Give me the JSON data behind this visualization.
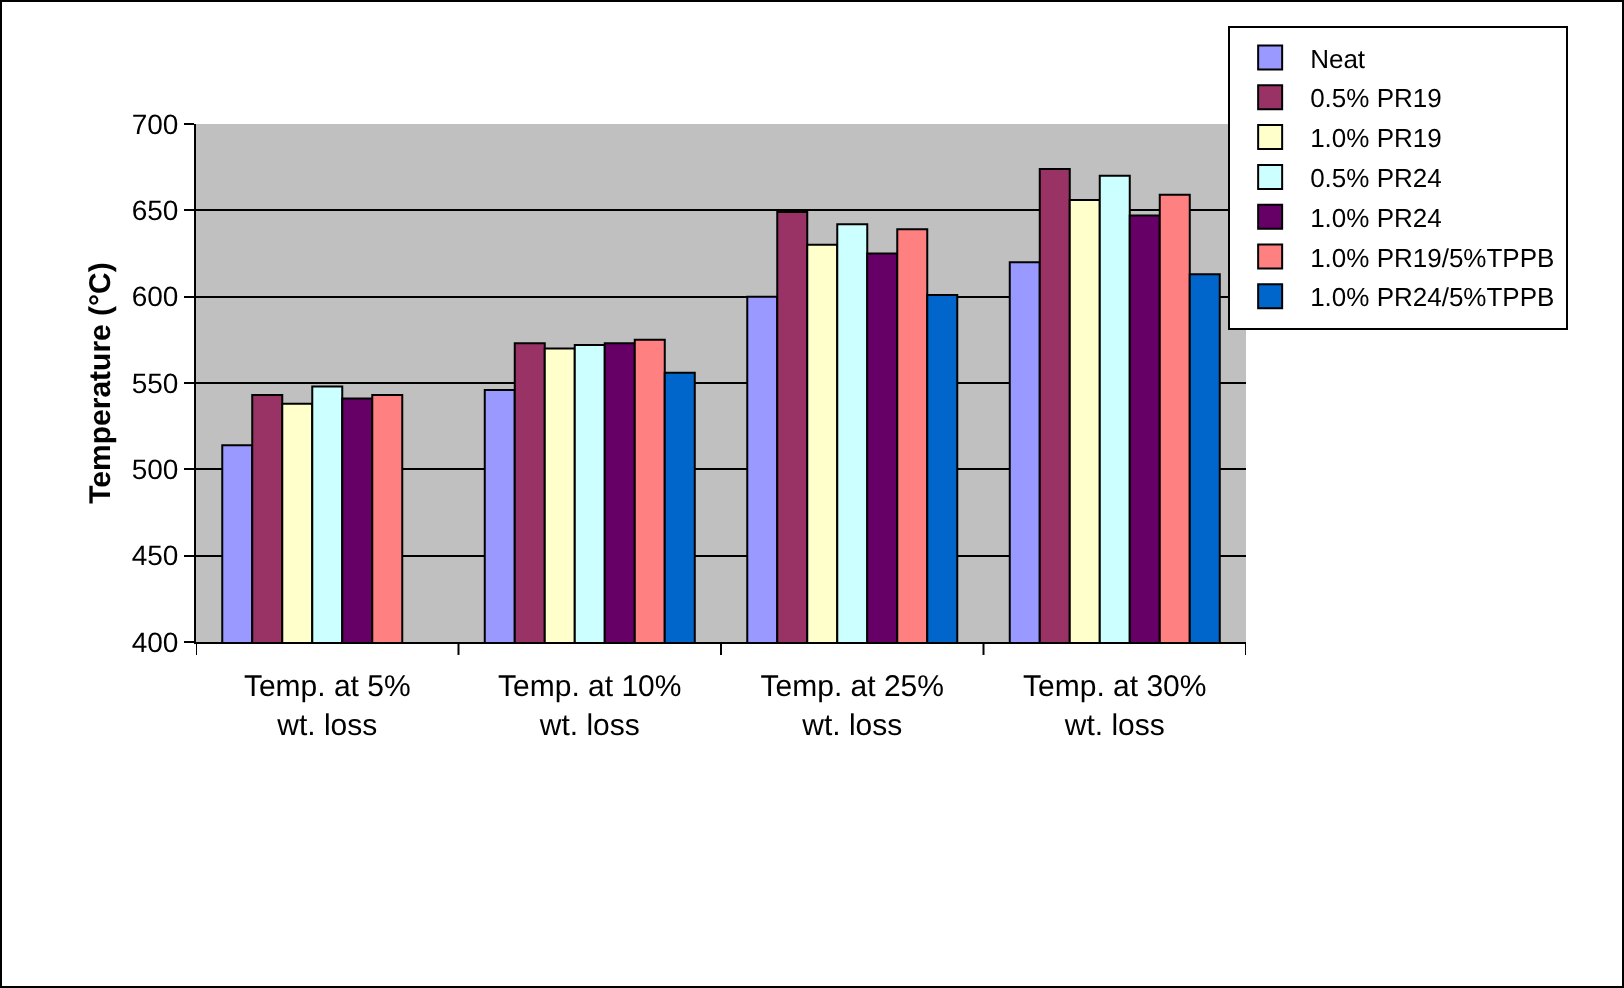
{
  "chart_data": {
    "type": "bar",
    "ylabel": "Temperature (°C)",
    "categories": [
      "Temp. at 5% wt. loss",
      "Temp. at 10% wt. loss",
      "Temp. at 25% wt. loss",
      "Temp. at 30% wt. loss"
    ],
    "series": [
      {
        "name": "Neat",
        "color": "#9999ff",
        "values": [
          514,
          546,
          600,
          620
        ]
      },
      {
        "name": "0.5% PR19",
        "color": "#993366",
        "values": [
          543,
          573,
          649,
          674
        ]
      },
      {
        "name": "1.0% PR19",
        "color": "#ffffcc",
        "values": [
          538,
          570,
          630,
          656
        ]
      },
      {
        "name": "0.5% PR24",
        "color": "#ccffff",
        "values": [
          548,
          572,
          642,
          670
        ]
      },
      {
        "name": "1.0% PR24",
        "color": "#660066",
        "values": [
          541,
          573,
          625,
          647
        ]
      },
      {
        "name": "1.0% PR19/5%TPPB",
        "color": "#ff8080",
        "values": [
          543,
          575,
          639,
          659
        ]
      },
      {
        "name": "1.0% PR24/5%TPPB",
        "color": "#0066cc",
        "values": [
          null,
          556,
          601,
          613
        ]
      }
    ],
    "ylim": [
      400,
      700
    ],
    "yticks": [
      400,
      450,
      500,
      550,
      600,
      650,
      700
    ],
    "grid": "y",
    "legend": "top right"
  }
}
